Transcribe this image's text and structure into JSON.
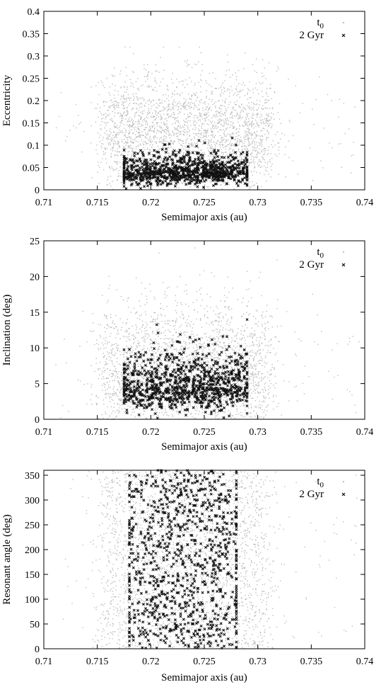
{
  "chart_data": [
    {
      "type": "scatter",
      "xlabel": "Semimajor axis (au)",
      "ylabel": "Eccentricity",
      "xlim": [
        0.71,
        0.74
      ],
      "ylim": [
        0,
        0.4
      ],
      "xticks": [
        "0.71",
        "0.715",
        "0.72",
        "0.725",
        "0.73",
        "0.735",
        "0.74"
      ],
      "yticks": [
        "0",
        "0.05",
        "0.1",
        "0.15",
        "0.2",
        "0.25",
        "0.3",
        "0.35",
        "0.4"
      ],
      "grid": false,
      "legend_position": "top-right",
      "series": [
        {
          "name": "t0",
          "marker": "dot",
          "color": "#bdbdbd",
          "count": 2600,
          "x_range": [
            0.711,
            0.7395
          ],
          "x_core": [
            0.7155,
            0.731
          ],
          "y_range": [
            0,
            0.32
          ],
          "y_center": 0.13
        },
        {
          "name": "2 Gyr",
          "marker": "cross",
          "color": "#111111",
          "count": 1000,
          "x_range": [
            0.7175,
            0.729
          ],
          "y_range": [
            0,
            0.13
          ],
          "y_center": 0.04
        }
      ]
    },
    {
      "type": "scatter",
      "xlabel": "Semimajor axis (au)",
      "ylabel": "Inclination (deg)",
      "xlim": [
        0.71,
        0.74
      ],
      "ylim": [
        0,
        25
      ],
      "xticks": [
        "0.71",
        "0.715",
        "0.72",
        "0.725",
        "0.73",
        "0.735",
        "0.74"
      ],
      "yticks": [
        "0",
        "5",
        "10",
        "15",
        "20",
        "25"
      ],
      "grid": false,
      "legend_position": "top-right",
      "series": [
        {
          "name": "t0",
          "marker": "dot",
          "color": "#bdbdbd",
          "count": 2600,
          "x_range": [
            0.711,
            0.7395
          ],
          "x_core": [
            0.7155,
            0.731
          ],
          "y_range": [
            0,
            24
          ],
          "y_center": 7
        },
        {
          "name": "2 Gyr",
          "marker": "cross",
          "color": "#111111",
          "count": 1000,
          "x_range": [
            0.7175,
            0.729
          ],
          "y_range": [
            0,
            16.5
          ],
          "y_center": 4.5
        }
      ]
    },
    {
      "type": "scatter",
      "xlabel": "Semimajor axis (au)",
      "ylabel": "Resonant angle (deg)",
      "xlim": [
        0.71,
        0.74
      ],
      "ylim": [
        0,
        360
      ],
      "xticks": [
        "0.71",
        "0.715",
        "0.72",
        "0.725",
        "0.73",
        "0.735",
        "0.74"
      ],
      "yticks": [
        "0",
        "50",
        "100",
        "150",
        "200",
        "250",
        "300",
        "350"
      ],
      "grid": false,
      "legend_position": "top-right",
      "series": [
        {
          "name": "t0",
          "marker": "dot",
          "color": "#bdbdbd",
          "count": 2600,
          "x_range": [
            0.711,
            0.7395
          ],
          "x_core": [
            0.7155,
            0.731
          ],
          "y_range": [
            0,
            360
          ]
        },
        {
          "name": "2 Gyr",
          "marker": "cross",
          "color": "#111111",
          "count": 1000,
          "x_range": [
            0.718,
            0.728
          ],
          "y_range": [
            0,
            360
          ]
        }
      ]
    }
  ]
}
